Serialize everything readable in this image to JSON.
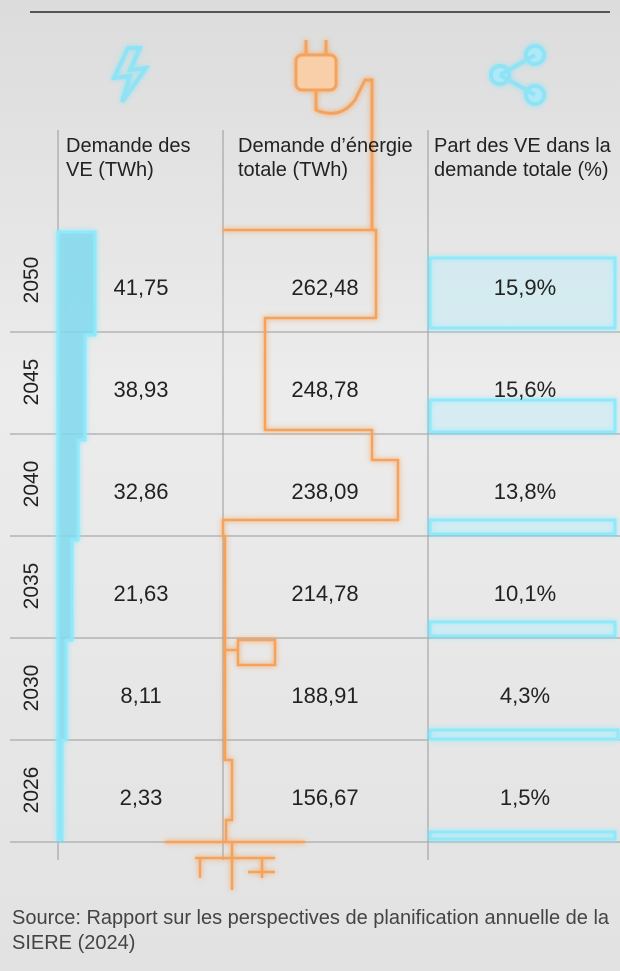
{
  "table": {
    "headers": [
      "Demande des VE (TWh)",
      "Demande d’énergie totale (TWh)",
      "Part des VE dans la demande totale (%)"
    ],
    "rows": [
      [
        "2050",
        "41,75",
        "262,48",
        "15,9%"
      ],
      [
        "2045",
        "38,93",
        "248,78",
        "15,6%"
      ],
      [
        "2040",
        "32,86",
        "238,09",
        "13,8%"
      ],
      [
        "2035",
        "21,63",
        "214,78",
        "10,1%"
      ],
      [
        "2030",
        "8,11",
        "188,91",
        "4,3%"
      ],
      [
        "2026",
        "2,33",
        "156,67",
        "1,5%"
      ]
    ]
  },
  "footer": {
    "source": "Source: Rapport sur les perspectives de planification annuelle de la SIERE (2024)"
  }
}
